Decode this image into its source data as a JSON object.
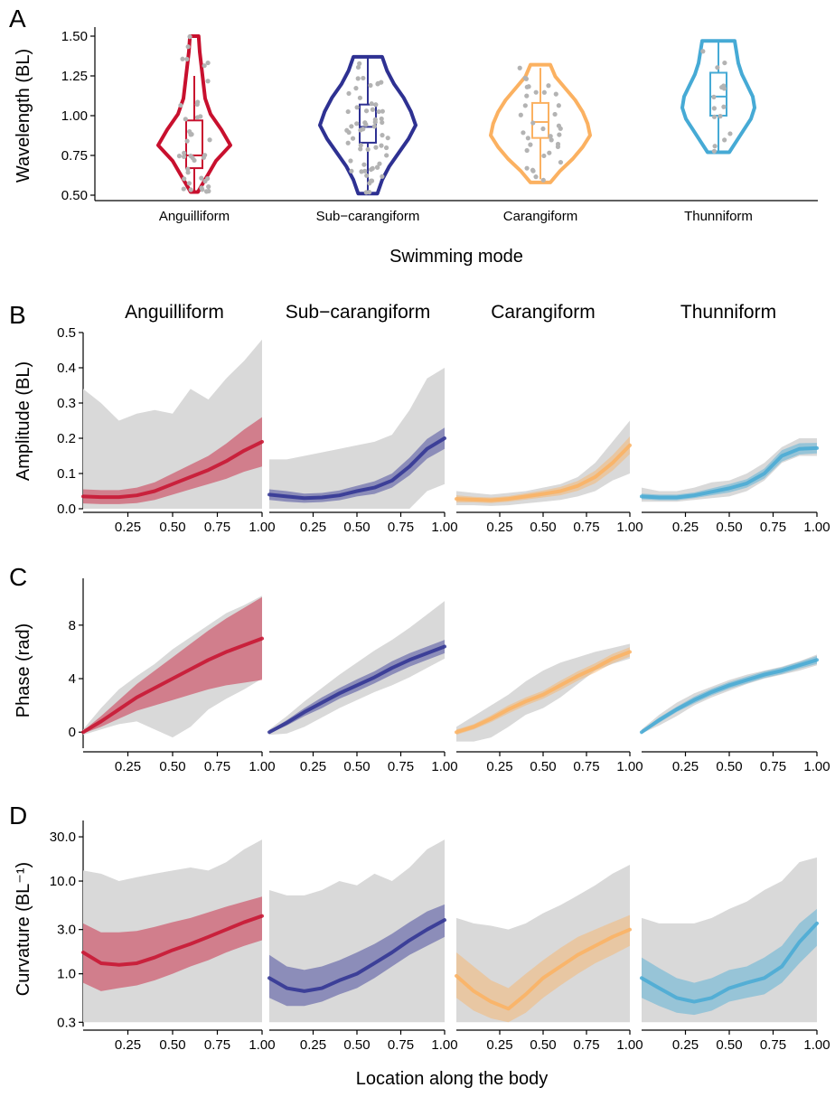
{
  "panel_labels": [
    "A",
    "B",
    "C",
    "D"
  ],
  "facets": [
    "Anguilliform",
    "Sub−carangiform",
    "Carangiform",
    "Thunniform"
  ],
  "colors": {
    "Anguilliform": "#c8102e",
    "Sub-carangiform": "#2e3192",
    "Carangiform": "#fbb161",
    "Thunniform": "#46aad5",
    "points": "#b3b3b3",
    "envelope": "#d9d9d9"
  },
  "chart_data": [
    {
      "type": "violin",
      "panel": "A",
      "xlabel": "Swimming mode",
      "ylabel": "Wavelength (BL)",
      "categories": [
        "Anguilliform",
        "Sub−carangiform",
        "Carangiform",
        "Thunniform"
      ],
      "yticks": [
        "0.50",
        "0.75",
        "1.00",
        "1.25",
        "1.50"
      ],
      "ylim": [
        0.5,
        1.5
      ],
      "boxes": [
        {
          "min": 0.52,
          "q1": 0.67,
          "median": 0.75,
          "q3": 0.97,
          "max": 1.25,
          "vmin": 0.52,
          "vmax": 1.5
        },
        {
          "min": 0.52,
          "q1": 0.83,
          "median": 0.93,
          "q3": 1.07,
          "max": 1.37,
          "vmin": 0.51,
          "vmax": 1.37
        },
        {
          "min": 0.6,
          "q1": 0.86,
          "median": 0.96,
          "q3": 1.08,
          "max": 1.3,
          "vmin": 0.58,
          "vmax": 1.32
        },
        {
          "min": 0.78,
          "q1": 1.0,
          "median": 1.12,
          "q3": 1.27,
          "max": 1.46,
          "vmin": 0.77,
          "vmax": 1.47
        }
      ]
    },
    {
      "type": "area",
      "panel": "B",
      "ylabel": "Amplitude (BL)",
      "x": [
        0,
        0.1,
        0.2,
        0.3,
        0.4,
        0.5,
        0.6,
        0.7,
        0.8,
        0.9,
        1.0
      ],
      "xticks": [
        "0.25",
        "0.50",
        "0.75",
        "1.00"
      ],
      "yticks": [
        "0.0",
        "0.1",
        "0.2",
        "0.3",
        "0.4",
        "0.5"
      ],
      "ylim": [
        0,
        0.5
      ],
      "series": [
        {
          "name": "Anguilliform",
          "mean": [
            0.035,
            0.033,
            0.033,
            0.038,
            0.05,
            0.07,
            0.09,
            0.11,
            0.135,
            0.165,
            0.19
          ],
          "band": [
            0.02,
            0.02,
            0.02,
            0.022,
            0.025,
            0.03,
            0.035,
            0.04,
            0.05,
            0.06,
            0.07
          ],
          "env_low": [
            0,
            0,
            0,
            0,
            0,
            0,
            0,
            0,
            0,
            0,
            0
          ],
          "env_high": [
            0.34,
            0.3,
            0.25,
            0.27,
            0.28,
            0.27,
            0.34,
            0.31,
            0.37,
            0.42,
            0.48
          ]
        },
        {
          "name": "Sub−carangiform",
          "mean": [
            0.04,
            0.035,
            0.03,
            0.032,
            0.038,
            0.05,
            0.06,
            0.08,
            0.12,
            0.17,
            0.2
          ],
          "band": [
            0.015,
            0.015,
            0.013,
            0.013,
            0.014,
            0.015,
            0.018,
            0.02,
            0.025,
            0.028,
            0.03
          ],
          "env_low": [
            0,
            0,
            0,
            0,
            0,
            0,
            0,
            0,
            0,
            0.05,
            0.07
          ],
          "env_high": [
            0.14,
            0.14,
            0.15,
            0.16,
            0.17,
            0.18,
            0.19,
            0.21,
            0.28,
            0.37,
            0.4
          ]
        },
        {
          "name": "Carangiform",
          "mean": [
            0.028,
            0.026,
            0.024,
            0.028,
            0.035,
            0.042,
            0.05,
            0.065,
            0.09,
            0.13,
            0.18
          ],
          "band": [
            0.01,
            0.008,
            0.008,
            0.008,
            0.009,
            0.01,
            0.012,
            0.014,
            0.018,
            0.022,
            0.025
          ],
          "env_low": [
            0.01,
            0.01,
            0.008,
            0.01,
            0.015,
            0.02,
            0.025,
            0.035,
            0.05,
            0.08,
            0.1
          ],
          "env_high": [
            0.05,
            0.045,
            0.04,
            0.045,
            0.05,
            0.06,
            0.07,
            0.09,
            0.13,
            0.19,
            0.25
          ]
        },
        {
          "name": "Thunniform",
          "mean": [
            0.035,
            0.032,
            0.032,
            0.038,
            0.048,
            0.058,
            0.072,
            0.1,
            0.15,
            0.17,
            0.172
          ],
          "band": [
            0.008,
            0.008,
            0.008,
            0.008,
            0.01,
            0.012,
            0.012,
            0.014,
            0.016,
            0.016,
            0.015
          ],
          "env_low": [
            0.02,
            0.02,
            0.02,
            0.025,
            0.03,
            0.035,
            0.05,
            0.08,
            0.13,
            0.15,
            0.15
          ],
          "env_high": [
            0.06,
            0.05,
            0.05,
            0.06,
            0.075,
            0.08,
            0.1,
            0.13,
            0.175,
            0.2,
            0.2
          ]
        }
      ]
    },
    {
      "type": "area",
      "panel": "C",
      "ylabel": "Phase (rad)",
      "x": [
        0,
        0.1,
        0.2,
        0.3,
        0.4,
        0.5,
        0.6,
        0.7,
        0.8,
        0.9,
        1.0
      ],
      "xticks": [
        "0.25",
        "0.50",
        "0.75",
        "1.00"
      ],
      "yticks": [
        "0",
        "4",
        "8"
      ],
      "ylim": [
        -1.2,
        11.5
      ],
      "series": [
        {
          "name": "Anguilliform",
          "mean": [
            0,
            0.8,
            1.7,
            2.6,
            3.3,
            4.0,
            4.7,
            5.4,
            6.0,
            6.5,
            7.0
          ],
          "band": [
            0.1,
            0.4,
            0.7,
            1.0,
            1.3,
            1.6,
            1.9,
            2.2,
            2.5,
            2.8,
            3.1
          ],
          "env_low": [
            -0.2,
            0.2,
            0.6,
            0.8,
            0.2,
            -0.4,
            0.4,
            1.7,
            2.5,
            3.2,
            4.0
          ],
          "env_high": [
            0.2,
            1.8,
            3.2,
            4.2,
            5.1,
            6.2,
            7.1,
            8.0,
            8.9,
            9.5,
            10.2
          ]
        },
        {
          "name": "Sub−carangiform",
          "mean": [
            0,
            0.7,
            1.5,
            2.2,
            2.9,
            3.5,
            4.1,
            4.8,
            5.4,
            5.9,
            6.4
          ],
          "band": [
            0.1,
            0.2,
            0.3,
            0.4,
            0.4,
            0.45,
            0.45,
            0.5,
            0.5,
            0.5,
            0.5
          ],
          "env_low": [
            -0.2,
            -0.1,
            0.4,
            1.1,
            1.8,
            2.4,
            3.0,
            3.5,
            4.1,
            4.8,
            5.5
          ],
          "env_high": [
            0.2,
            1.2,
            2.3,
            3.3,
            4.3,
            5.2,
            6.1,
            6.9,
            7.8,
            8.8,
            9.8
          ]
        },
        {
          "name": "Carangiform",
          "mean": [
            0,
            0.4,
            1.0,
            1.7,
            2.3,
            2.8,
            3.5,
            4.2,
            4.8,
            5.5,
            6.0
          ],
          "band": [
            0.2,
            0.2,
            0.25,
            0.3,
            0.3,
            0.3,
            0.35,
            0.35,
            0.35,
            0.35,
            0.35
          ],
          "env_low": [
            -0.7,
            -0.7,
            -0.4,
            0.4,
            1.3,
            1.8,
            2.6,
            3.6,
            4.6,
            5.1,
            5.5
          ],
          "env_high": [
            0.4,
            1.2,
            2.0,
            2.8,
            3.8,
            4.6,
            5.2,
            5.6,
            6.0,
            6.3,
            6.6
          ]
        },
        {
          "name": "Thunniform",
          "mean": [
            0,
            0.9,
            1.7,
            2.4,
            3.0,
            3.5,
            3.9,
            4.3,
            4.6,
            5.0,
            5.4
          ],
          "band": [
            0.1,
            0.2,
            0.2,
            0.25,
            0.25,
            0.25,
            0.25,
            0.25,
            0.25,
            0.25,
            0.3
          ],
          "env_low": [
            -0.1,
            0.5,
            1.2,
            2.0,
            2.6,
            3.1,
            3.6,
            4.0,
            4.3,
            4.6,
            5.0
          ],
          "env_high": [
            0.2,
            1.3,
            2.2,
            2.9,
            3.4,
            3.9,
            4.3,
            4.6,
            4.9,
            5.3,
            5.8
          ]
        }
      ]
    },
    {
      "type": "area",
      "panel": "D",
      "ylabel": "Curvature (BL⁻¹)",
      "xlabel": "Location along the body",
      "yscale": "log",
      "x": [
        0,
        0.1,
        0.2,
        0.3,
        0.4,
        0.5,
        0.6,
        0.7,
        0.8,
        0.9,
        1.0
      ],
      "xticks": [
        "0.25",
        "0.50",
        "0.75",
        "1.00"
      ],
      "yticks": [
        "0.3",
        "1.0",
        "3.0",
        "10.0",
        "30.0"
      ],
      "ylim": [
        0.27,
        45
      ],
      "series": [
        {
          "name": "Anguilliform",
          "mean": [
            1.7,
            1.3,
            1.25,
            1.3,
            1.5,
            1.8,
            2.1,
            2.5,
            3.0,
            3.6,
            4.2
          ],
          "band_low": [
            0.8,
            0.65,
            0.7,
            0.75,
            0.85,
            1.0,
            1.2,
            1.4,
            1.7,
            2.0,
            2.3
          ],
          "band_high": [
            3.5,
            2.8,
            2.8,
            2.9,
            3.2,
            3.6,
            4.0,
            4.6,
            5.3,
            6.0,
            6.8
          ],
          "env_low": [
            0.3,
            0.3,
            0.3,
            0.3,
            0.3,
            0.3,
            0.3,
            0.3,
            0.3,
            0.3,
            0.3
          ],
          "env_high": [
            13,
            12,
            10,
            11,
            12,
            13,
            14,
            13,
            16,
            22,
            28
          ]
        },
        {
          "name": "Sub−carangiform",
          "mean": [
            0.9,
            0.7,
            0.65,
            0.7,
            0.85,
            1.0,
            1.3,
            1.7,
            2.3,
            3.0,
            3.8
          ],
          "band_low": [
            0.55,
            0.45,
            0.45,
            0.5,
            0.6,
            0.7,
            0.9,
            1.2,
            1.6,
            2.0,
            2.5
          ],
          "band_high": [
            1.6,
            1.2,
            1.1,
            1.2,
            1.4,
            1.7,
            2.1,
            2.7,
            3.6,
            4.7,
            5.6
          ],
          "env_low": [
            0.3,
            0.3,
            0.3,
            0.3,
            0.3,
            0.3,
            0.3,
            0.3,
            0.3,
            0.3,
            0.3
          ],
          "env_high": [
            8,
            7,
            7,
            8,
            10,
            9,
            12,
            10,
            14,
            22,
            28
          ]
        },
        {
          "name": "Carangiform",
          "mean": [
            0.95,
            0.65,
            0.5,
            0.42,
            0.6,
            0.9,
            1.2,
            1.6,
            2.0,
            2.5,
            3.0
          ],
          "band_low": [
            0.55,
            0.4,
            0.33,
            0.3,
            0.38,
            0.55,
            0.75,
            1.0,
            1.3,
            1.6,
            2.0
          ],
          "band_high": [
            1.7,
            1.2,
            0.85,
            0.7,
            1.0,
            1.4,
            1.9,
            2.5,
            3.0,
            3.6,
            4.3
          ],
          "env_low": [
            0.3,
            0.3,
            0.3,
            0.3,
            0.3,
            0.3,
            0.3,
            0.3,
            0.3,
            0.3,
            0.3
          ],
          "env_high": [
            4,
            3.5,
            3.3,
            3,
            3.5,
            4.5,
            5.5,
            7,
            9,
            12,
            15
          ]
        },
        {
          "name": "Thunniform",
          "mean": [
            0.9,
            0.7,
            0.55,
            0.5,
            0.55,
            0.7,
            0.8,
            0.9,
            1.2,
            2.2,
            3.5
          ],
          "band_low": [
            0.55,
            0.45,
            0.38,
            0.36,
            0.4,
            0.5,
            0.55,
            0.6,
            0.8,
            1.3,
            2.0
          ],
          "band_high": [
            1.5,
            1.15,
            0.9,
            0.8,
            0.9,
            1.1,
            1.2,
            1.5,
            2.0,
            3.5,
            5.0
          ],
          "env_low": [
            0.3,
            0.3,
            0.3,
            0.3,
            0.3,
            0.3,
            0.3,
            0.3,
            0.3,
            0.3,
            0.3
          ],
          "env_high": [
            4,
            3.5,
            3.5,
            3.5,
            4,
            5,
            6,
            8,
            10,
            16,
            18
          ]
        }
      ]
    }
  ]
}
